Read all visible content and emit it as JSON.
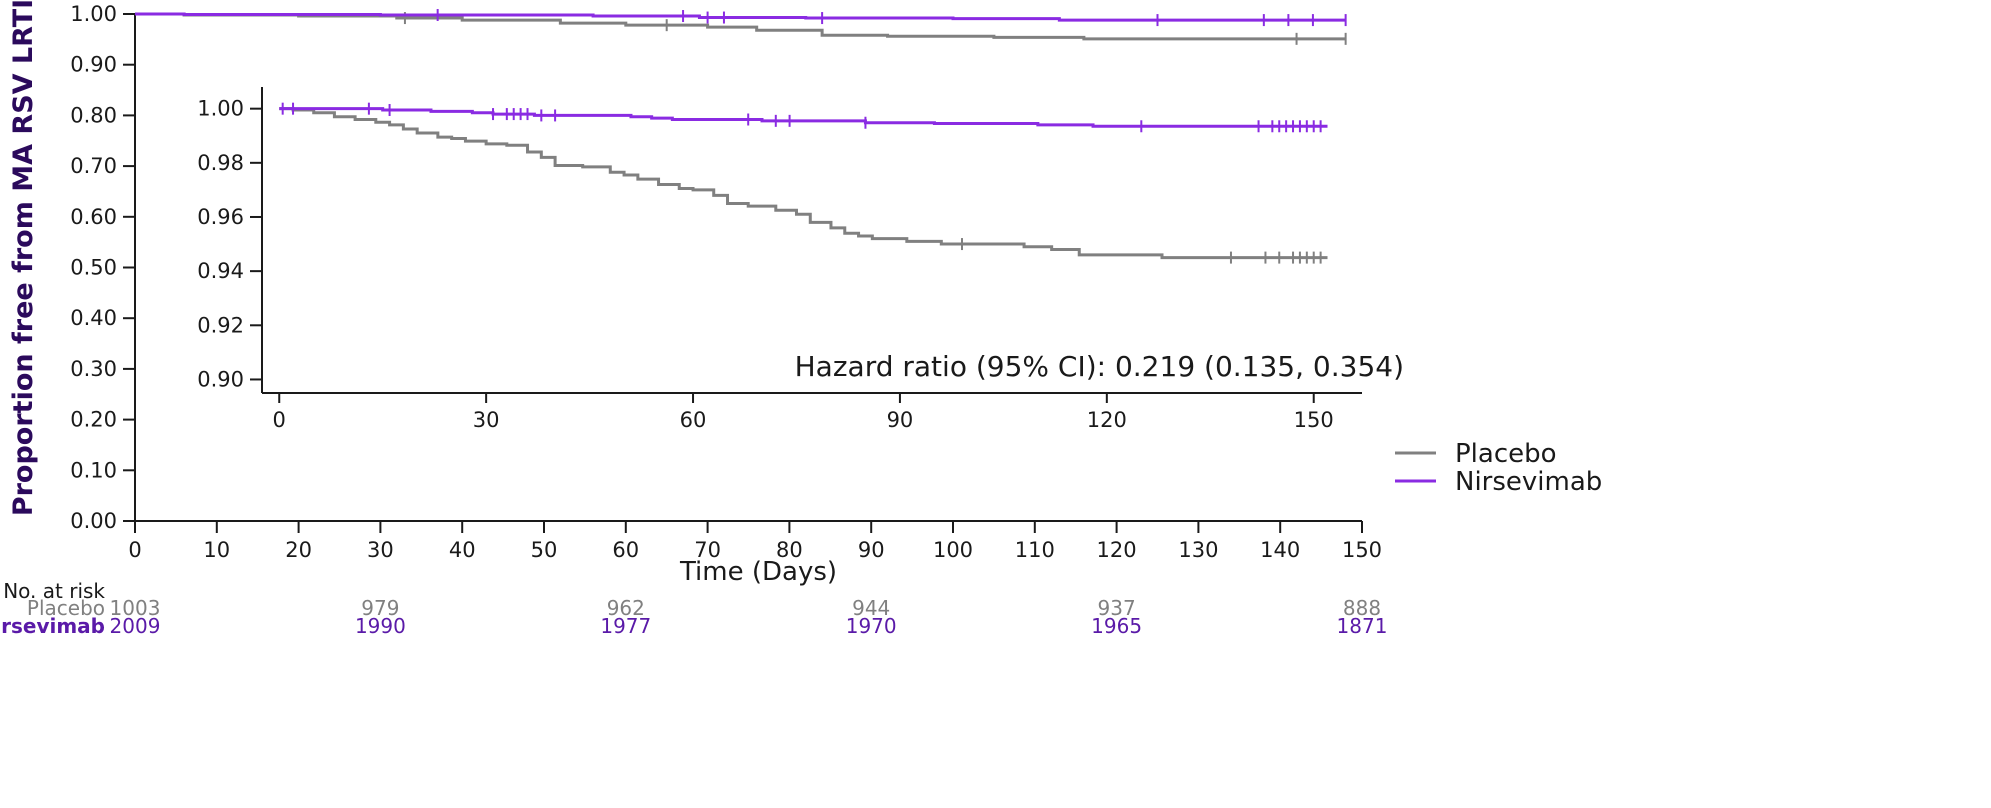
{
  "chart_data": {
    "type": "line",
    "subtype": "kaplan-meier",
    "ylabel": "Proportion free from MA RSV LRTI",
    "xlabel": "Time (Days)",
    "xlim": [
      0,
      150
    ],
    "ylim": [
      0,
      1
    ],
    "x_ticks": [
      0,
      10,
      20,
      30,
      40,
      50,
      60,
      70,
      80,
      90,
      100,
      110,
      120,
      130,
      140,
      150
    ],
    "y_ticks": [
      "0.00",
      "0.10",
      "0.20",
      "0.30",
      "0.40",
      "0.50",
      "0.60",
      "0.70",
      "0.80",
      "0.90",
      "1.00"
    ],
    "grid": false,
    "legend_position": "right",
    "series": [
      {
        "name": "Placebo",
        "color": "#808080",
        "points": [
          [
            0,
            1.0
          ],
          [
            6,
            0.998
          ],
          [
            20,
            0.996
          ],
          [
            32,
            0.992
          ],
          [
            40,
            0.988
          ],
          [
            52,
            0.982
          ],
          [
            60,
            0.978
          ],
          [
            70,
            0.974
          ],
          [
            76,
            0.968
          ],
          [
            84,
            0.958
          ],
          [
            92,
            0.956
          ],
          [
            105,
            0.954
          ],
          [
            116,
            0.951
          ],
          [
            148,
            0.951
          ]
        ],
        "censor_x": [
          33,
          65,
          142,
          148
        ]
      },
      {
        "name": "Nirsevimab",
        "color": "#8a2be2",
        "points": [
          [
            0,
            1.0
          ],
          [
            6,
            0.999
          ],
          [
            30,
            0.998
          ],
          [
            56,
            0.996
          ],
          [
            69,
            0.993
          ],
          [
            82,
            0.992
          ],
          [
            100,
            0.991
          ],
          [
            113,
            0.988
          ],
          [
            148,
            0.988
          ]
        ],
        "censor_x": [
          37,
          67,
          70,
          72,
          84,
          125,
          138,
          141,
          144,
          148
        ]
      }
    ],
    "inset": {
      "xlim": [
        -2.5,
        157
      ],
      "ylim": [
        0.895,
        1.008
      ],
      "x_ticks": [
        0,
        30,
        60,
        90,
        120,
        150
      ],
      "y_ticks": [
        "0.90",
        "0.92",
        "0.94",
        "0.96",
        "0.98",
        "1.00"
      ],
      "annotation": "Hazard ratio (95% CI): 0.219 (0.135, 0.354)",
      "series": [
        {
          "name": "Placebo",
          "color": "#808080",
          "points": [
            [
              0,
              1.0
            ],
            [
              2,
              0.9995
            ],
            [
              5,
              0.9985
            ],
            [
              8,
              0.997
            ],
            [
              11,
              0.996
            ],
            [
              14,
              0.995
            ],
            [
              16,
              0.994
            ],
            [
              18,
              0.9925
            ],
            [
              20,
              0.991
            ],
            [
              23,
              0.9895
            ],
            [
              25,
              0.989
            ],
            [
              27,
              0.988
            ],
            [
              30,
              0.987
            ],
            [
              33,
              0.9865
            ],
            [
              36,
              0.984
            ],
            [
              38,
              0.982
            ],
            [
              40,
              0.979
            ],
            [
              44,
              0.9785
            ],
            [
              48,
              0.9765
            ],
            [
              50,
              0.9755
            ],
            [
              52,
              0.974
            ],
            [
              55,
              0.972
            ],
            [
              58,
              0.9705
            ],
            [
              60,
              0.97
            ],
            [
              63,
              0.968
            ],
            [
              65,
              0.965
            ],
            [
              68,
              0.964
            ],
            [
              72,
              0.9625
            ],
            [
              75,
              0.961
            ],
            [
              77,
              0.958
            ],
            [
              80,
              0.956
            ],
            [
              82,
              0.954
            ],
            [
              84,
              0.953
            ],
            [
              86,
              0.952
            ],
            [
              91,
              0.951
            ],
            [
              96,
              0.95
            ],
            [
              108,
              0.949
            ],
            [
              112,
              0.948
            ],
            [
              116,
              0.946
            ],
            [
              128,
              0.945
            ],
            [
              152,
              0.945
            ]
          ],
          "censor_x": [
            99,
            138,
            143,
            145,
            147,
            148,
            149,
            150,
            151
          ]
        },
        {
          "name": "Nirsevimab",
          "color": "#8a2be2",
          "points": [
            [
              0,
              1.0
            ],
            [
              15,
              0.9995
            ],
            [
              22,
              0.999
            ],
            [
              28,
              0.9985
            ],
            [
              31,
              0.998
            ],
            [
              37,
              0.9975
            ],
            [
              51,
              0.997
            ],
            [
              54,
              0.9965
            ],
            [
              57,
              0.996
            ],
            [
              70,
              0.9955
            ],
            [
              85,
              0.9948
            ],
            [
              95,
              0.9945
            ],
            [
              110,
              0.994
            ],
            [
              118,
              0.9935
            ],
            [
              152,
              0.9935
            ]
          ],
          "censor_x": [
            0.5,
            2,
            13,
            16,
            31,
            33,
            34,
            35,
            36,
            38,
            40,
            68,
            72,
            74,
            85,
            125,
            142,
            144,
            145,
            146,
            147,
            148,
            149,
            150,
            151
          ]
        }
      ]
    },
    "risk_table": {
      "title": "No. at risk",
      "x_positions": [
        0,
        30,
        60,
        90,
        120,
        150
      ],
      "rows": [
        {
          "name": "Placebo",
          "color": "#808080",
          "values": [
            "1003",
            "979",
            "962",
            "944",
            "937",
            "888"
          ]
        },
        {
          "name": "Nirsevimab",
          "color": "#5a1aa8",
          "values": [
            "2009",
            "1990",
            "1977",
            "1970",
            "1965",
            "1871"
          ]
        }
      ]
    }
  }
}
